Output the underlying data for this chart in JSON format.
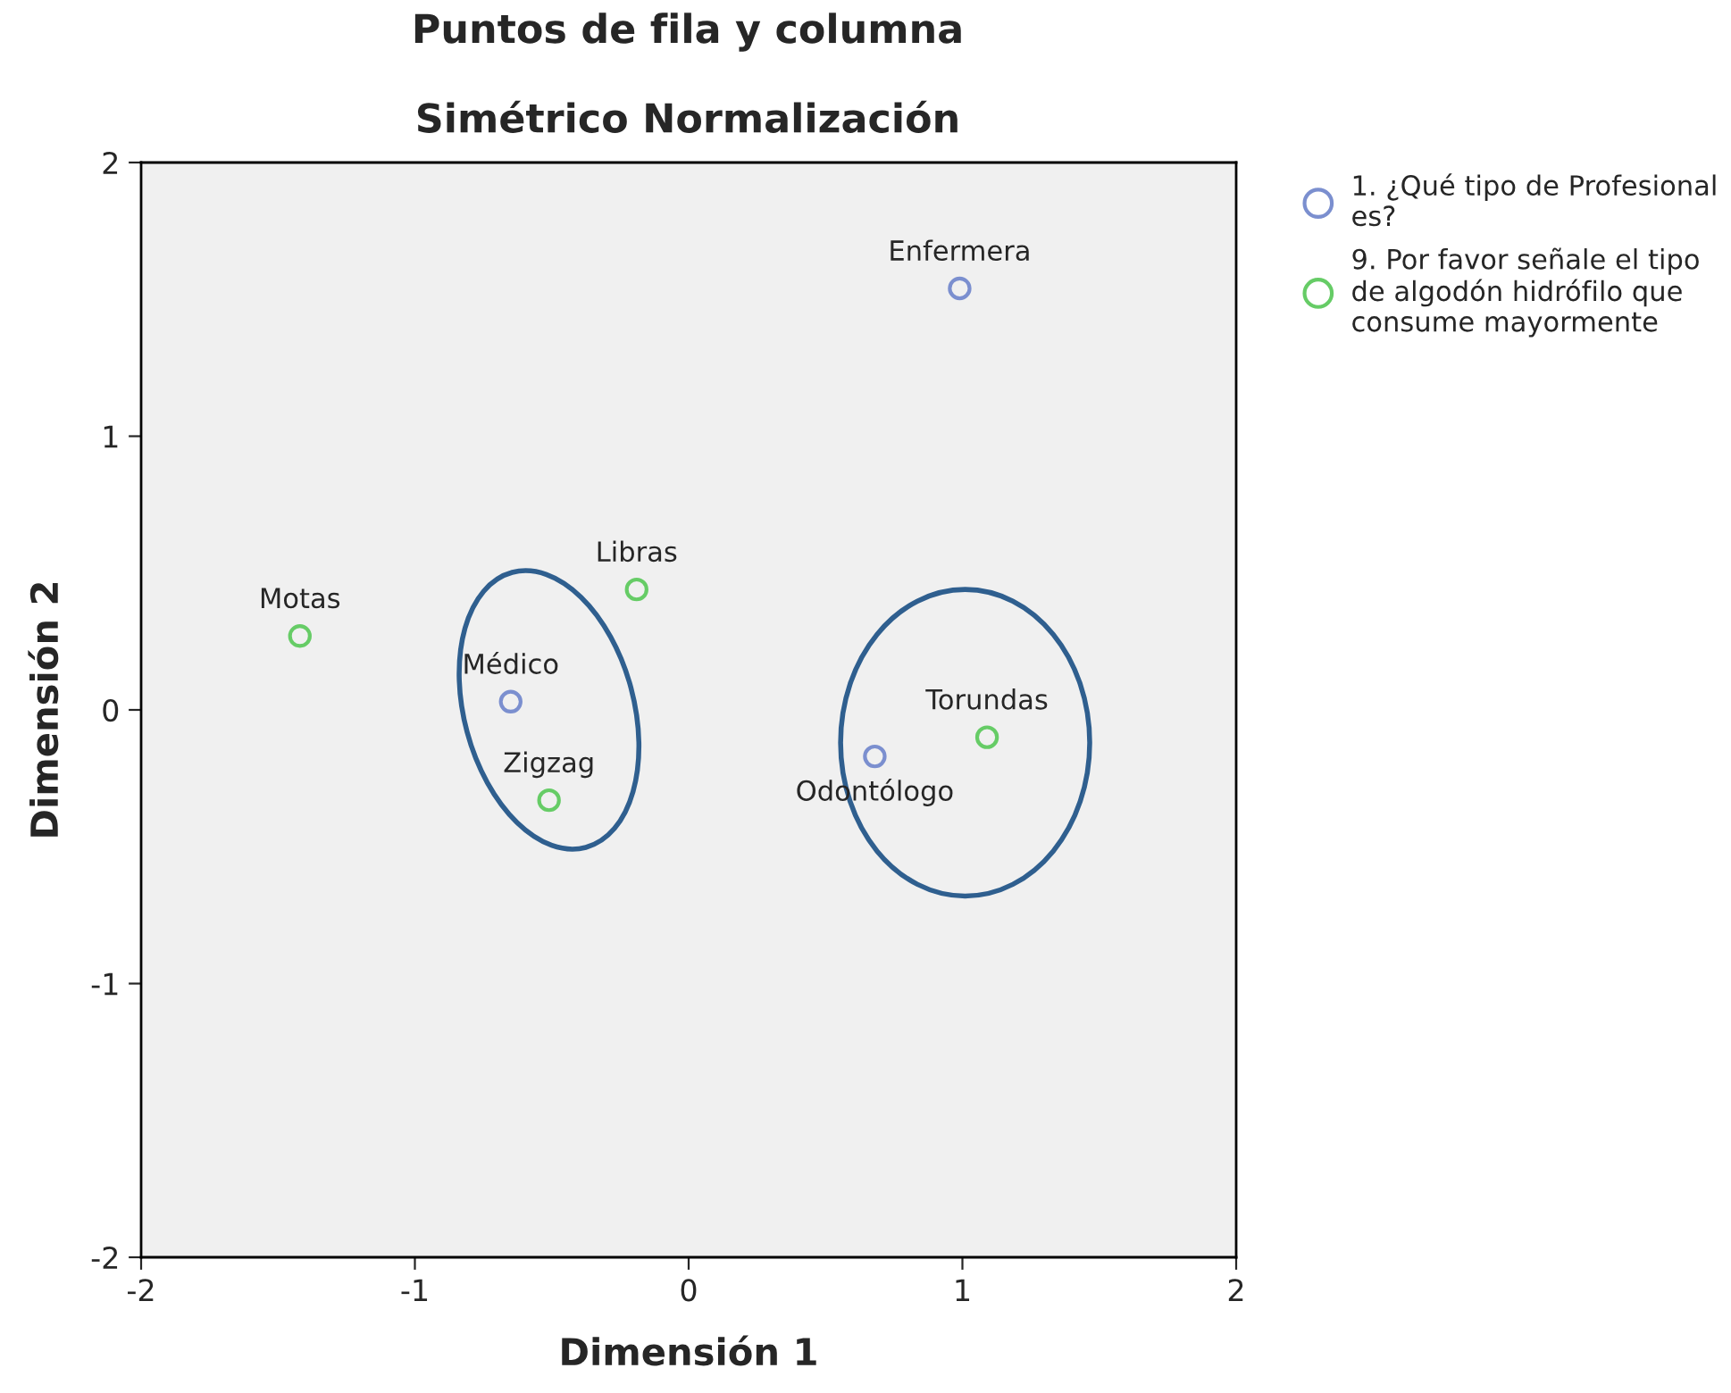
{
  "chart_data": {
    "type": "scatter",
    "title": "Puntos de fila y columna",
    "subtitle": "Simétrico Normalización",
    "xlabel": "Dimensión 1",
    "ylabel": "Dimensión 2",
    "series": [
      {
        "name": "1. ¿Qué tipo de Profesional es?",
        "color": "#7b8fcf",
        "x": [
          0.99,
          -0.65,
          0.68
        ],
        "values": [
          1.54,
          0.03,
          -0.17
        ]
      },
      {
        "name": "9. Por favor señale el tipo de algodón hidrófilo que consume mayormente",
        "color": "#66cc66",
        "x": [
          -1.42,
          -0.19,
          -0.51,
          1.09
        ],
        "values": [
          0.27,
          0.44,
          -0.33,
          -0.1
        ]
      }
    ],
    "annotations": [
      {
        "text": "Enfermera",
        "x": 0.99,
        "y": 1.54
      },
      {
        "text": "Médico",
        "x": -0.65,
        "y": 0.03
      },
      {
        "text": "Odontólogo",
        "x": 0.68,
        "y": -0.17
      },
      {
        "text": "Motas",
        "x": -1.42,
        "y": 0.27
      },
      {
        "text": "Libras",
        "x": -0.19,
        "y": 0.44
      },
      {
        "text": "Zigzag",
        "x": -0.51,
        "y": -0.33
      },
      {
        "text": "Torundas",
        "x": 1.09,
        "y": -0.1
      }
    ],
    "xlim": [
      -2,
      2
    ],
    "ylim": [
      -2,
      2
    ],
    "xticks": [
      -2,
      -1,
      0,
      1,
      2
    ],
    "yticks": [
      -2,
      -1,
      0,
      1,
      2
    ],
    "marker": "circle",
    "grid": false,
    "legend": "top right"
  }
}
